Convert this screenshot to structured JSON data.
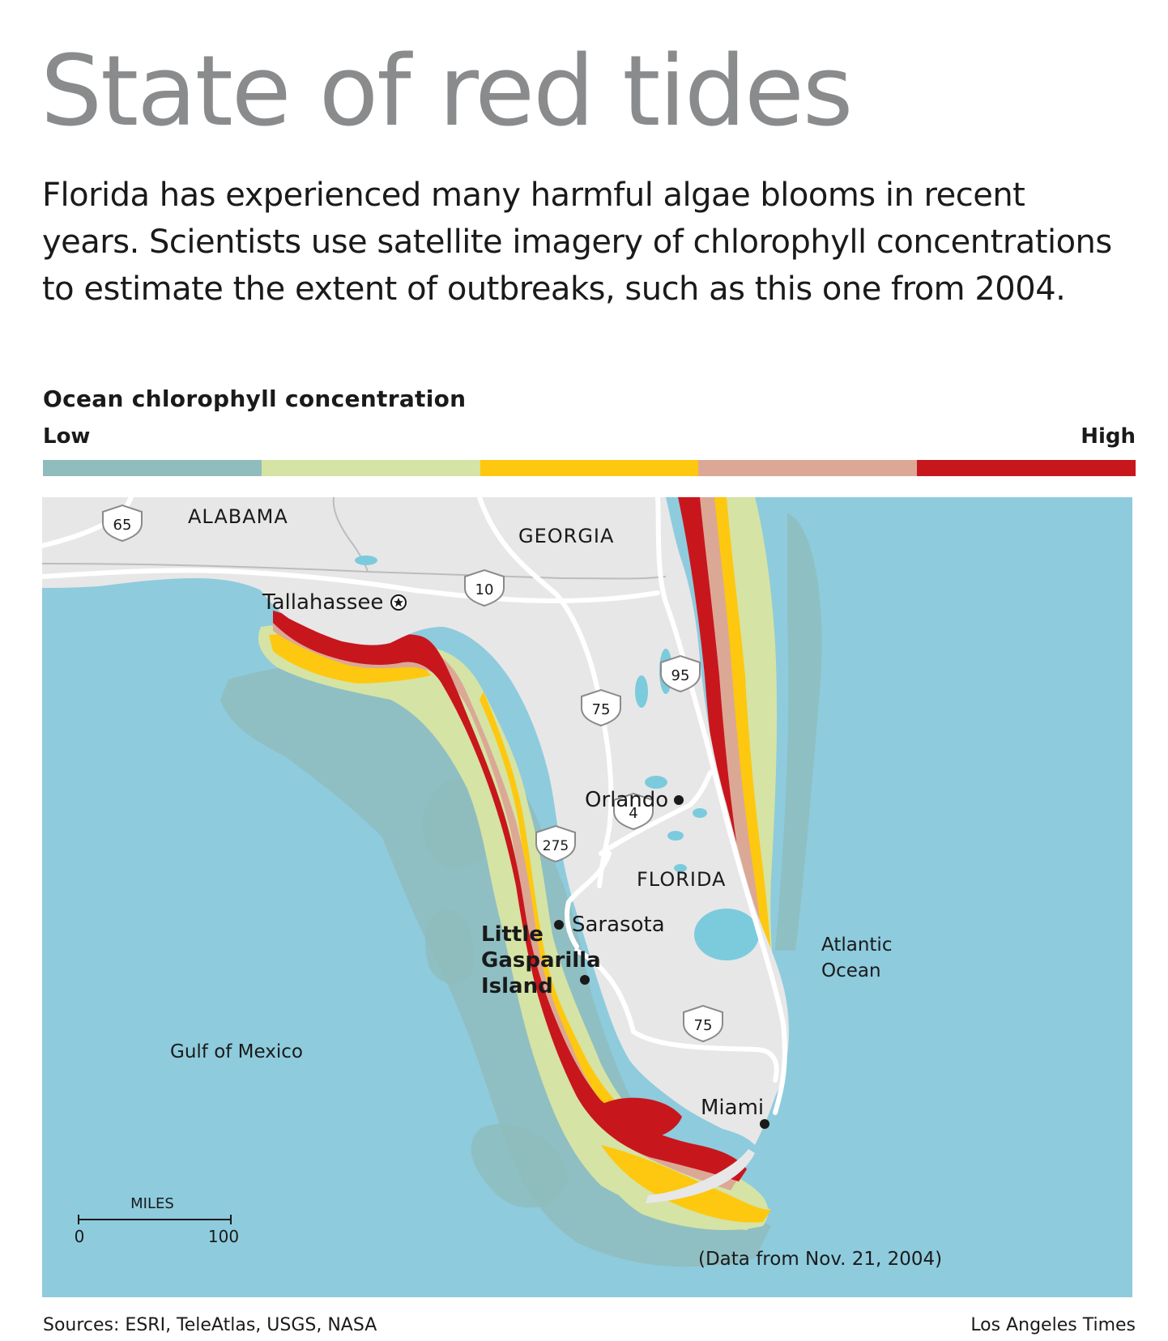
{
  "header": {
    "title": "State of red tides",
    "intro": "Florida has experienced many harmful algae blooms in recent years. Scientists use satellite imagery of chlorophyll concentrations to estimate the extent of outbreaks, such as this one from 2004."
  },
  "legend": {
    "title": "Ocean chlorophyll concentration",
    "low_label": "Low",
    "high_label": "High",
    "colors": [
      "#8fbdbd",
      "#d5e3a5",
      "#fdc80f",
      "#dba896",
      "#c8161d"
    ]
  },
  "map": {
    "colors": {
      "ocean": "#8ecbdd",
      "land": "#e7e7e8",
      "road": "#ffffff",
      "border": "#bcbcbe",
      "lake": "#7ccbdc"
    },
    "states": {
      "alabama": "ALABAMA",
      "georgia": "GEORGIA",
      "florida": "FLORIDA"
    },
    "cities": {
      "tallahassee": "Tallahassee",
      "orlando": "Orlando",
      "sarasota": "Sarasota",
      "miami": "Miami"
    },
    "highlight_place": [
      "Little",
      "Gasparilla",
      "Island"
    ],
    "water_bodies": {
      "gulf": "Gulf of Mexico",
      "atlantic": [
        "Atlantic",
        "Ocean"
      ]
    },
    "highways": {
      "i65": "65",
      "i10": "10",
      "i75_north": "75",
      "i95": "95",
      "i4": "4",
      "i275": "275",
      "i75_south": "75"
    },
    "scale": {
      "unit": "MILES",
      "start": "0",
      "end": "100"
    },
    "data_note": "(Data from Nov. 21, 2004)"
  },
  "footer": {
    "sources": "Sources: ESRI, TeleAtlas, USGS, NASA",
    "credit": "Los Angeles Times"
  }
}
